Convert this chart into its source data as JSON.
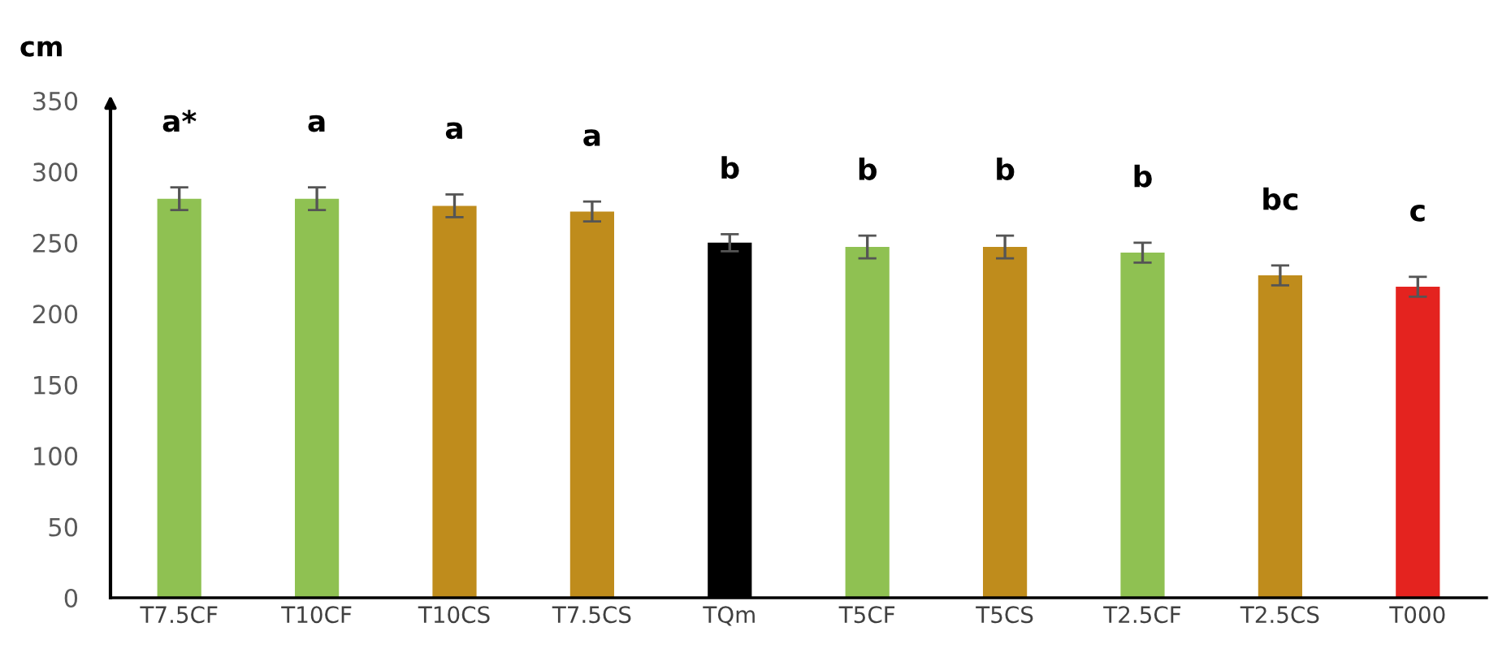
{
  "chart_data": {
    "type": "bar",
    "ylabel": "cm",
    "categories": [
      "T7.5CF",
      "T10CF",
      "T10CS",
      "T7.5CS",
      "TQm",
      "T5CF",
      "T5CS",
      "T2.5CF",
      "T2.5CS",
      "T000"
    ],
    "values": [
      281,
      281,
      276,
      272,
      250,
      247,
      247,
      243,
      227,
      219
    ],
    "errors": [
      8,
      8,
      8,
      7,
      6,
      8,
      8,
      7,
      7,
      7
    ],
    "colors": [
      "#8fc152",
      "#8fc152",
      "#bf8c1c",
      "#bf8c1c",
      "#000000",
      "#8fc152",
      "#bf8c1c",
      "#8fc152",
      "#bf8c1c",
      "#e4231f"
    ],
    "ylim": [
      0,
      350
    ],
    "yticks": [
      0,
      50,
      100,
      150,
      200,
      250,
      300,
      350
    ],
    "grid": false,
    "annotations": [
      "a*",
      "a",
      "a",
      "a",
      "b",
      "b",
      "b",
      "b",
      "bc",
      "c"
    ]
  }
}
